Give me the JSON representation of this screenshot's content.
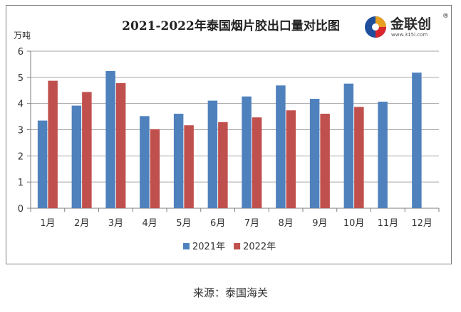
{
  "chart_data": {
    "type": "bar",
    "title": "2021-2022年泰国烟片胶出口量对比图",
    "ylabel": "万吨",
    "ylim": [
      0,
      6
    ],
    "yticks": [
      0,
      1,
      2,
      3,
      4,
      5,
      6
    ],
    "grid": true,
    "legend_position": "bottom",
    "categories": [
      "1月",
      "2月",
      "3月",
      "4月",
      "5月",
      "6月",
      "7月",
      "8月",
      "9月",
      "10月",
      "11月",
      "12月"
    ],
    "series": [
      {
        "name": "2021年",
        "color": "#4f81bd",
        "values": [
          3.35,
          3.92,
          5.24,
          3.52,
          3.61,
          4.11,
          4.27,
          4.69,
          4.18,
          4.76,
          4.07,
          5.18
        ]
      },
      {
        "name": "2022年",
        "color": "#c0504d",
        "values": [
          4.87,
          4.44,
          4.78,
          3.02,
          3.17,
          3.29,
          3.47,
          3.74,
          3.61,
          3.87,
          null,
          null
        ]
      }
    ]
  },
  "logo": {
    "text": "金联创",
    "registered_mark": "®",
    "url_text": "www.315i.com"
  },
  "source": "来源：泰国海关"
}
